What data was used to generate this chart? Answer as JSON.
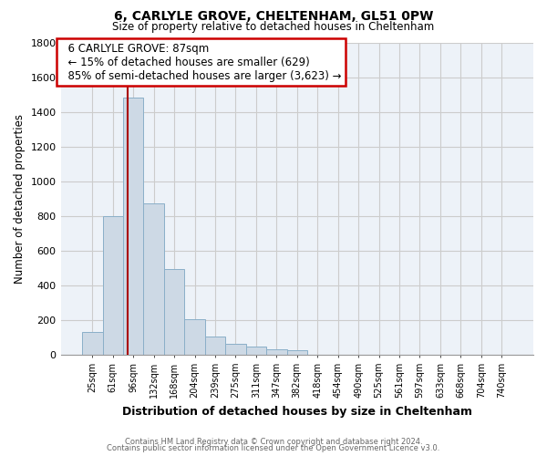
{
  "title": "6, CARLYLE GROVE, CHELTENHAM, GL51 0PW",
  "subtitle": "Size of property relative to detached houses in Cheltenham",
  "xlabel": "Distribution of detached houses by size in Cheltenham",
  "ylabel": "Number of detached properties",
  "bar_labels": [
    "25sqm",
    "61sqm",
    "96sqm",
    "132sqm",
    "168sqm",
    "204sqm",
    "239sqm",
    "275sqm",
    "311sqm",
    "347sqm",
    "382sqm",
    "418sqm",
    "454sqm",
    "490sqm",
    "525sqm",
    "561sqm",
    "597sqm",
    "633sqm",
    "668sqm",
    "704sqm",
    "740sqm"
  ],
  "bar_values": [
    130,
    800,
    1480,
    875,
    495,
    205,
    105,
    65,
    50,
    30,
    25,
    0,
    0,
    0,
    0,
    0,
    0,
    0,
    0,
    0,
    0
  ],
  "bar_color": "#cdd9e5",
  "bar_edge_color": "#8aafc8",
  "ylim": [
    0,
    1800
  ],
  "yticks": [
    0,
    200,
    400,
    600,
    800,
    1000,
    1200,
    1400,
    1600,
    1800
  ],
  "property_line_color": "#aa0000",
  "annotation_title": "6 CARLYLE GROVE: 87sqm",
  "annotation_line1": "← 15% of detached houses are smaller (629)",
  "annotation_line2": "85% of semi-detached houses are larger (3,623) →",
  "annotation_box_color": "#ffffff",
  "annotation_box_edge": "#cc0000",
  "footer_line1": "Contains HM Land Registry data © Crown copyright and database right 2024.",
  "footer_line2": "Contains public sector information licensed under the Open Government Licence v3.0.",
  "grid_color": "#cccccc",
  "background_color": "#edf2f8"
}
